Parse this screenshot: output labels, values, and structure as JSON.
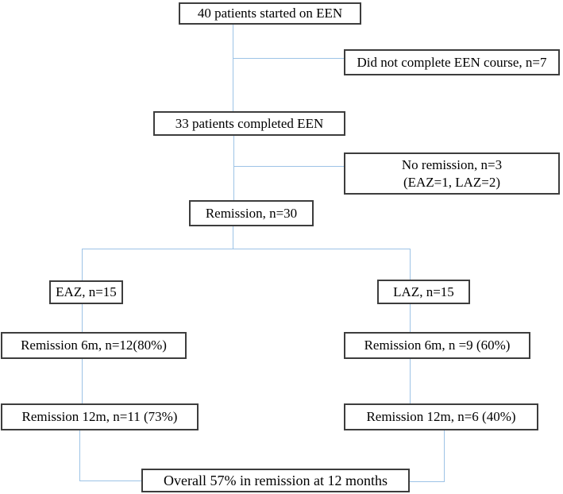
{
  "diagram": {
    "title": "EEN patient flow chart",
    "colors": {
      "background": "#ffffff",
      "line": "#9dc3e6",
      "box_border": "#3d3d3d",
      "text": "#000000"
    },
    "boxes": {
      "start": {
        "label": "40 patients started on EEN"
      },
      "dropout": {
        "label": "Did not complete EEN course, n=7"
      },
      "completed": {
        "label": "33 patients completed EEN"
      },
      "no_remission": {
        "line1": "No remission, n=3",
        "line2": "(EAZ=1, LAZ=2)"
      },
      "remission": {
        "label": "Remission, n=30"
      },
      "eaz": {
        "label": "EAZ, n=15"
      },
      "laz": {
        "label": "LAZ, n=15"
      },
      "eaz_6m": {
        "label": "Remission 6m, n=12(80%)"
      },
      "laz_6m": {
        "label": "Remission 6m, n =9 (60%)"
      },
      "eaz_12m": {
        "label": "Remission 12m, n=11 (73%)"
      },
      "laz_12m": {
        "label": "Remission 12m, n=6 (40%)"
      },
      "overall": {
        "label": "Overall 57% in remission at 12 months"
      }
    }
  }
}
